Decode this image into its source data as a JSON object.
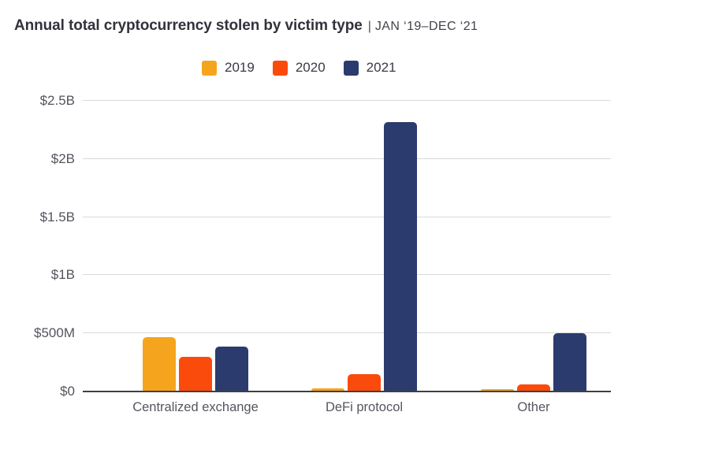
{
  "header": {
    "title": "Annual total cryptocurrency stolen by victim type",
    "separator": "|",
    "period": "JAN ‘19–DEC ‘21"
  },
  "chart_data": {
    "type": "bar",
    "title": "Annual total cryptocurrency stolen by victim type",
    "subtitle": "JAN '19–DEC '21",
    "categories": [
      "Centralized exchange",
      "DeFi protocol",
      "Other"
    ],
    "series": [
      {
        "name": "2019",
        "color": "#F5A51D",
        "values_usd_millions": [
          465,
          25,
          20
        ]
      },
      {
        "name": "2020",
        "color": "#FB4B0C",
        "values_usd_millions": [
          300,
          150,
          60
        ]
      },
      {
        "name": "2021",
        "color": "#2C3B6E",
        "values_usd_millions": [
          385,
          2320,
          500
        ]
      }
    ],
    "y_axis": {
      "ticks": [
        "$0",
        "$500M",
        "$1B",
        "$1.5B",
        "$2B",
        "$2.5B"
      ],
      "tick_values_usd_millions": [
        0,
        500,
        1000,
        1500,
        2000,
        2500
      ],
      "range_usd_millions": [
        0,
        2500
      ]
    },
    "grid": "horizontal",
    "legend_position": "top"
  },
  "colors": {
    "background": "#ffffff",
    "grid_line": "#d9d9d9",
    "axis_line": "#3f3f3f",
    "title_text": "#32323c",
    "label_text": "#55555e"
  }
}
